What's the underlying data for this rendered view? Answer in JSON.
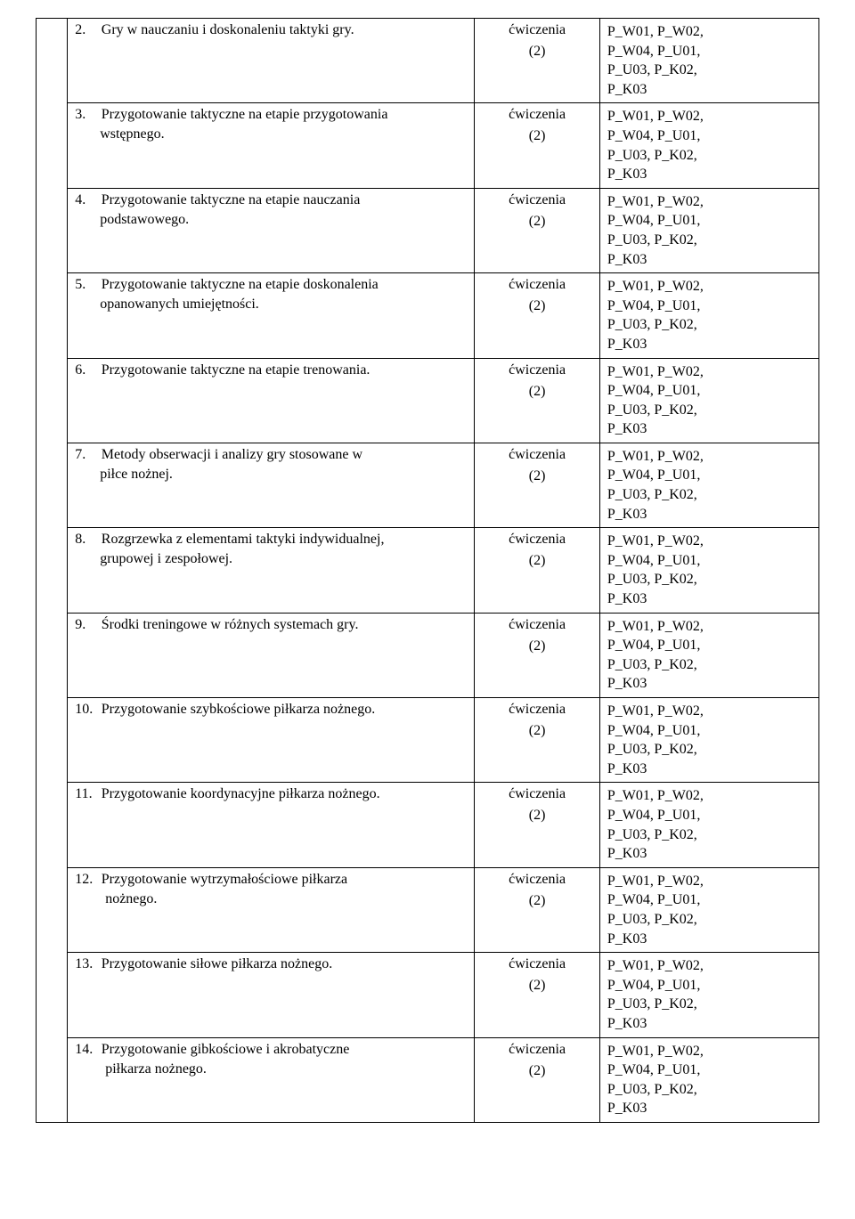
{
  "type_label": "ćwiczenia",
  "type_count": "(2)",
  "codes_lines": [
    "P_W01, P_W02,",
    "P_W04, P_U01,",
    "P_U03, P_K02,",
    "P_K03"
  ],
  "rows": [
    {
      "num": "2.",
      "line1": "Gry w nauczaniu i doskonaleniu taktyki gry.",
      "line2": ""
    },
    {
      "num": "3.",
      "line1": "Przygotowanie taktyczne na etapie przygotowania",
      "line2": "wstępnego."
    },
    {
      "num": "4.",
      "line1": "Przygotowanie   taktyczne   na   etapie   nauczania",
      "line2": "podstawowego."
    },
    {
      "num": "5.",
      "line1": "Przygotowanie  taktyczne  na  etapie  doskonalenia",
      "line2": "opanowanych umiejętności."
    },
    {
      "num": "6.",
      "line1": "Przygotowanie taktyczne na etapie trenowania.",
      "line2": ""
    },
    {
      "num": "7.",
      "line1": "Metody  obserwacji  i  analizy  gry  stosowane  w",
      "line2": "piłce nożnej."
    },
    {
      "num": "8.",
      "line1": "Rozgrzewka  z  elementami  taktyki  indywidualnej,",
      "line2": "grupowej i zespołowej."
    },
    {
      "num": "9.",
      "line1": "Środki treningowe w różnych systemach gry.",
      "line2": ""
    },
    {
      "num": "10.",
      "line1": "Przygotowanie szybkościowe piłkarza nożnego.",
      "line2": ""
    },
    {
      "num": "11.",
      "line1": "Przygotowanie koordynacyjne piłkarza nożnego.",
      "line2": ""
    },
    {
      "num": "12.",
      "line1": "Przygotowanie       wytrzymałościowe       piłkarza",
      "line2": "nożnego."
    },
    {
      "num": "13.",
      "line1": "Przygotowanie siłowe piłkarza nożnego.",
      "line2": ""
    },
    {
      "num": "14.",
      "line1": "Przygotowanie     gibkościowe     i     akrobatyczne",
      "line2": "piłkarza nożnego."
    }
  ]
}
